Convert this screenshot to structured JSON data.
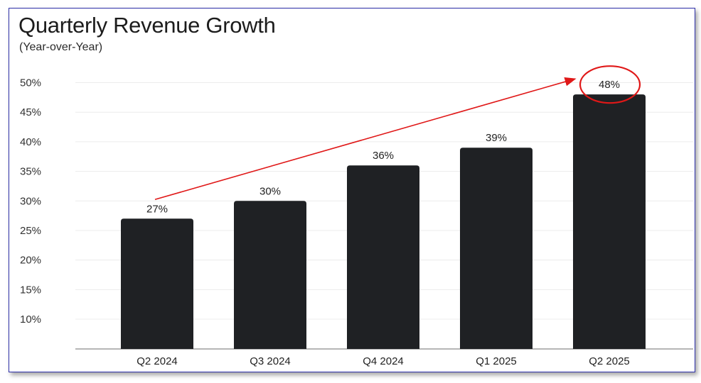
{
  "chart_data": {
    "type": "bar",
    "title": "Quarterly Revenue Growth",
    "subtitle": "(Year-over-Year)",
    "xlabel": "",
    "ylabel": "",
    "categories": [
      "Q2 2024",
      "Q3 2024",
      "Q4 2024",
      "Q1 2025",
      "Q2 2025"
    ],
    "values": [
      27,
      30,
      36,
      39,
      48
    ],
    "data_labels": [
      "27%",
      "30%",
      "36%",
      "39%",
      "48%"
    ],
    "yticks": [
      10,
      15,
      20,
      25,
      30,
      35,
      40,
      45,
      50
    ],
    "ytick_labels": [
      "10%",
      "15%",
      "20%",
      "25%",
      "30%",
      "35%",
      "40%",
      "45%",
      "50%"
    ],
    "ylim": [
      5,
      50
    ],
    "grid": true,
    "legend": "none",
    "colors": {
      "bar": "#1f2124",
      "gridline": "#ececec",
      "axis": "#8a8a8a",
      "annotation": "#e01818"
    },
    "annotations": [
      {
        "type": "arrow",
        "from_category": "Q2 2024",
        "to_category": "Q2 2025"
      },
      {
        "type": "circle",
        "target_category": "Q2 2025"
      }
    ]
  }
}
